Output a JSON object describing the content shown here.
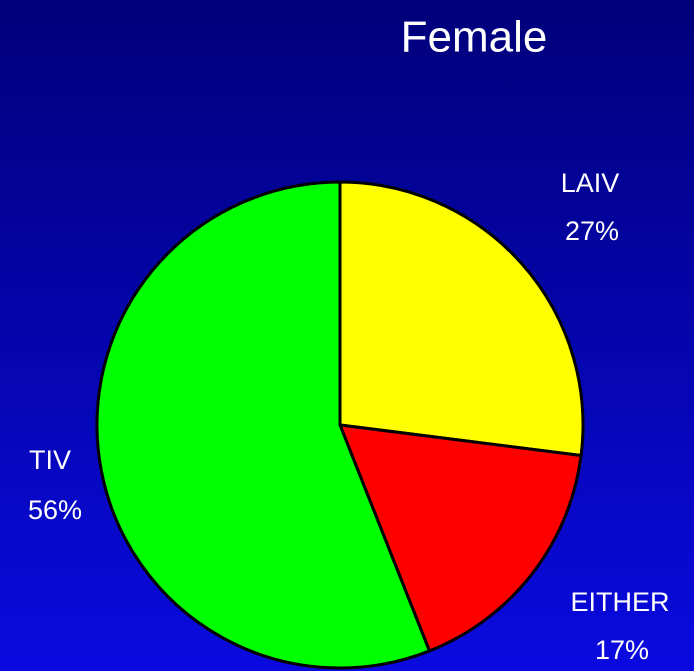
{
  "chart_data": {
    "type": "pie",
    "title": "Female",
    "categories": [
      "LAIV",
      "EITHER",
      "TIV"
    ],
    "values": [
      27,
      17,
      56
    ],
    "value_labels": [
      "27%",
      "17%",
      "56%"
    ],
    "colors": [
      "#ffff00",
      "#ff0000",
      "#00ff00"
    ]
  }
}
